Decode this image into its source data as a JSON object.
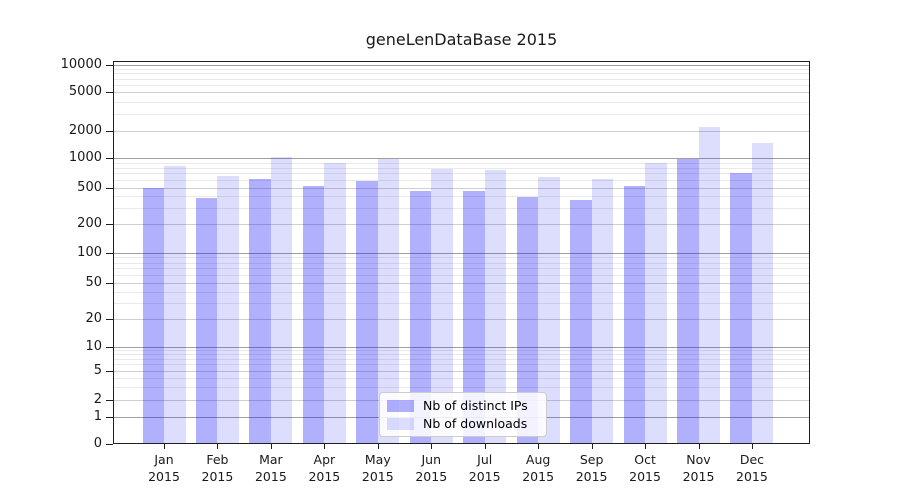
{
  "chart_data": {
    "type": "bar",
    "title": "geneLenDataBase 2015",
    "categories": [
      "Jan",
      "Feb",
      "Mar",
      "Apr",
      "May",
      "Jun",
      "Jul",
      "Aug",
      "Sep",
      "Oct",
      "Nov",
      "Dec"
    ],
    "year_label": "2015",
    "series": [
      {
        "name": "Nb of distinct IPs",
        "color": "#abaaf3",
        "values": [
          490,
          380,
          620,
          520,
          590,
          460,
          455,
          390,
          365,
          520,
          975,
          700
        ]
      },
      {
        "name": "Nb of downloads",
        "color": "#dbdbfa",
        "values": [
          840,
          660,
          1040,
          885,
          980,
          780,
          760,
          650,
          620,
          890,
          2200,
          1470
        ]
      }
    ],
    "yscale": "symlog",
    "ylim": [
      0,
      10000
    ],
    "yticks": [
      0,
      1,
      2,
      5,
      10,
      20,
      50,
      100,
      200,
      500,
      1000,
      2000,
      5000,
      10000
    ],
    "grid": "both",
    "legend_position": "lower center"
  },
  "legend": {
    "items": [
      {
        "label": "Nb of distinct IPs",
        "swatch": "ips-swatch"
      },
      {
        "label": "Nb of downloads",
        "swatch": "downloads-swatch"
      }
    ]
  },
  "colors": {
    "bar_ips": "#abaaf3",
    "bar_downloads": "#dbdbfa",
    "grid_decade": "#9f9f9f",
    "grid_major": "#cfcfcf",
    "grid_minor": "#e9e9e9",
    "axis": "#1f1f1f",
    "background": "#ffffff"
  }
}
